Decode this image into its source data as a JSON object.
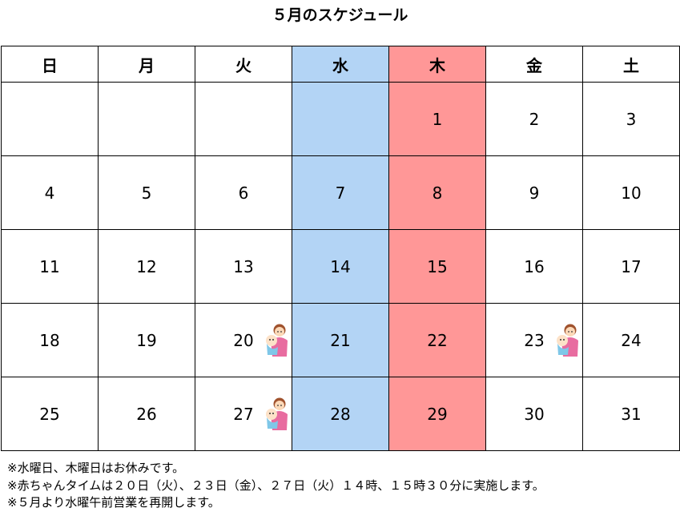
{
  "title": "５月のスケジュール",
  "weekdays": [
    "日",
    "月",
    "火",
    "水",
    "木",
    "金",
    "土"
  ],
  "weeks": [
    [
      "",
      "",
      "",
      "",
      "1",
      "2",
      "3"
    ],
    [
      "4",
      "5",
      "6",
      "7",
      "8",
      "9",
      "10"
    ],
    [
      "11",
      "12",
      "13",
      "14",
      "15",
      "16",
      "17"
    ],
    [
      "18",
      "19",
      "20",
      "21",
      "22",
      "23",
      "24"
    ],
    [
      "25",
      "26",
      "27",
      "28",
      "29",
      "30",
      "31"
    ]
  ],
  "closed_day_colors": {
    "wednesday": "#b3d4f5",
    "thursday": "#ff9797"
  },
  "baby_time_days": [
    "20",
    "23",
    "27"
  ],
  "baby_icon": "mother-holding-baby-illustration",
  "notes": [
    "※水曜日、木曜日はお休みです。",
    "※赤ちゃんタイムは２０日（火）、２３日（金）、２７日（火）１４時、１５時３０分に実施します。",
    "※５月より水曜午前営業を再開します。"
  ]
}
